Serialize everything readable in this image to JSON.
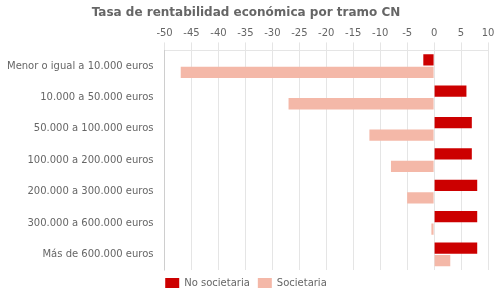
{
  "chart_data": {
    "type": "bar",
    "orientation": "horizontal",
    "title": "Tasa de rentabilidad económica por tramo CN",
    "categories": [
      "Menor o igual a 10.000 euros",
      "10.000 a 50.000 euros",
      "50.000 a 100.000 euros",
      "100.000 a 200.000 euros",
      "200.000 a 300.000 euros",
      "300.000 a 600.000 euros",
      "Más de 600.000 euros"
    ],
    "series": [
      {
        "name": "No societaria",
        "color": "#cc0000",
        "values": [
          -2.0,
          6.0,
          7.0,
          7.0,
          8.0,
          8.0,
          8.0
        ]
      },
      {
        "name": "Societaria",
        "color": "#f4b8a8",
        "values": [
          -47.0,
          -27.0,
          -12.0,
          -8.0,
          -5.0,
          -0.5,
          3.0
        ]
      }
    ],
    "xlim": [
      -50,
      10
    ],
    "xticks": [
      -50,
      -45,
      -40,
      -35,
      -30,
      -25,
      -20,
      -15,
      -10,
      -5,
      0,
      5,
      10
    ],
    "grid": true,
    "legend": "bottom"
  }
}
